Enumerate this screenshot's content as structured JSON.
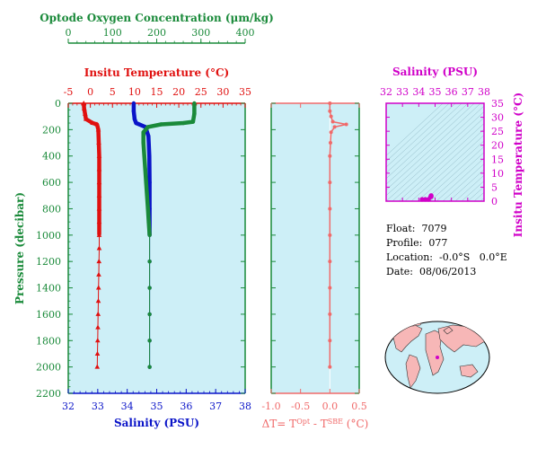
{
  "colors": {
    "oxygen": "#1a8a3a",
    "temperature": "#e0100f",
    "salinity": "#0a14c8",
    "pressure_axis": "#1a8a3a",
    "delta": "#f06a6a",
    "ts_axis": "#d000c8",
    "panel_bg": "#cdeff7"
  },
  "chart_data": [
    {
      "type": "line",
      "name": "profile",
      "y_axis": {
        "label": "Pressure (decibar)",
        "ylim": [
          0,
          2200
        ],
        "ticks": [
          0,
          200,
          400,
          600,
          800,
          1000,
          1200,
          1400,
          1600,
          1800,
          2000,
          2200
        ],
        "inverted": true
      },
      "x_axes": {
        "oxygen": {
          "label": "Optode Oxygen Concentration (μm/kg)",
          "range": [
            0,
            400
          ],
          "ticks": [
            0,
            100,
            200,
            300,
            400
          ]
        },
        "temperature": {
          "label": "Insitu Temperature (°C)",
          "range": [
            -5,
            35
          ],
          "ticks": [
            -5,
            0,
            5,
            10,
            15,
            20,
            25,
            30,
            35
          ]
        },
        "salinity": {
          "label": "Salinity (PSU)",
          "range": [
            32,
            38
          ],
          "ticks": [
            32,
            33,
            34,
            35,
            36,
            37,
            38
          ]
        }
      },
      "series": [
        {
          "name": "Insitu Temperature",
          "axis": "temperature",
          "points": [
            [
              -1.5,
              0
            ],
            [
              -1.4,
              40
            ],
            [
              -1.2,
              80
            ],
            [
              -1.0,
              120
            ],
            [
              0.5,
              150
            ],
            [
              1.5,
              160
            ],
            [
              1.8,
              200
            ],
            [
              1.9,
              300
            ],
            [
              2.0,
              400
            ],
            [
              2.0,
              500
            ],
            [
              2.0,
              600
            ],
            [
              2.0,
              700
            ],
            [
              2.0,
              800
            ],
            [
              2.0,
              900
            ],
            [
              2.0,
              1000
            ],
            [
              2.0,
              1100
            ],
            [
              1.95,
              1200
            ],
            [
              1.9,
              1300
            ],
            [
              1.85,
              1400
            ],
            [
              1.8,
              1500
            ],
            [
              1.75,
              1600
            ],
            [
              1.7,
              1700
            ],
            [
              1.65,
              1800
            ],
            [
              1.6,
              1900
            ],
            [
              1.55,
              2000
            ]
          ]
        },
        {
          "name": "Salinity",
          "axis": "salinity",
          "points": [
            [
              34.22,
              0
            ],
            [
              34.22,
              60
            ],
            [
              34.25,
              120
            ],
            [
              34.3,
              150
            ],
            [
              34.62,
              180
            ],
            [
              34.72,
              250
            ],
            [
              34.75,
              400
            ],
            [
              34.76,
              600
            ],
            [
              34.76,
              800
            ],
            [
              34.76,
              1000
            ],
            [
              34.76,
              1200
            ],
            [
              34.76,
              1400
            ],
            [
              34.76,
              1600
            ],
            [
              34.76,
              1800
            ],
            [
              34.76,
              2000
            ]
          ]
        },
        {
          "name": "Optode Oxygen",
          "axis": "oxygen",
          "points": [
            [
              285,
              0
            ],
            [
              285,
              80
            ],
            [
              282,
              140
            ],
            [
              260,
              150
            ],
            [
              210,
              160
            ],
            [
              180,
              180
            ],
            [
              170,
              220
            ],
            [
              170,
              300
            ],
            [
              172,
              400
            ],
            [
              174,
              500
            ],
            [
              176,
              600
            ],
            [
              178,
              700
            ],
            [
              180,
              800
            ],
            [
              182,
              900
            ],
            [
              184,
              1000
            ],
            [
              184,
              1200
            ],
            [
              184,
              1400
            ],
            [
              184,
              1600
            ],
            [
              184,
              1800
            ],
            [
              184,
              2000
            ]
          ]
        }
      ]
    },
    {
      "type": "line",
      "name": "delta-t",
      "xlabel": "ΔT= T",
      "xlabel_sup1": "Opt",
      "xlabel_mid": " - T",
      "xlabel_sup2": "SBE",
      "xlabel_end": " (°C)",
      "xlim": [
        -1.0,
        0.5
      ],
      "ticks": [
        -1.0,
        -0.5,
        0.0,
        0.5
      ],
      "tick_labels": [
        "-1.0",
        "-0.5",
        "0.0",
        "0.5"
      ],
      "series": [
        {
          "name": "ΔT",
          "points": [
            [
              0.0,
              0
            ],
            [
              0.0,
              60
            ],
            [
              0.02,
              100
            ],
            [
              0.05,
              140
            ],
            [
              0.28,
              160
            ],
            [
              0.08,
              180
            ],
            [
              0.02,
              220
            ],
            [
              0.01,
              300
            ],
            [
              0.0,
              400
            ],
            [
              0.0,
              600
            ],
            [
              0.0,
              800
            ],
            [
              0.0,
              1000
            ],
            [
              0.0,
              1200
            ],
            [
              0.0,
              1400
            ],
            [
              0.0,
              1600
            ],
            [
              0.0,
              1800
            ],
            [
              0.0,
              2000
            ]
          ]
        }
      ]
    },
    {
      "type": "scatter",
      "name": "ts-diagram",
      "xlabel": "Salinity (PSU)",
      "ylabel": "Insitu Temperature (°C)",
      "xlim": [
        32,
        38
      ],
      "ylim": [
        0,
        35
      ],
      "xticks": [
        32,
        33,
        34,
        35,
        36,
        37,
        38
      ],
      "yticks": [
        0,
        5,
        10,
        15,
        20,
        25,
        30,
        35
      ],
      "points": [
        [
          34.2,
          -1.4
        ],
        [
          34.4,
          -0.5
        ],
        [
          34.6,
          0.5
        ],
        [
          34.72,
          1.5
        ],
        [
          34.75,
          1.9
        ],
        [
          34.76,
          2.0
        ],
        [
          34.76,
          1.8
        ],
        [
          34.76,
          1.6
        ]
      ]
    }
  ],
  "float_info": {
    "float": "Float:  7079",
    "profile": "Profile:  077",
    "location": "Location:  -0.0°S   0.0°E",
    "date": "Date:  08/06/2013"
  },
  "map": {
    "marker": "float position"
  }
}
